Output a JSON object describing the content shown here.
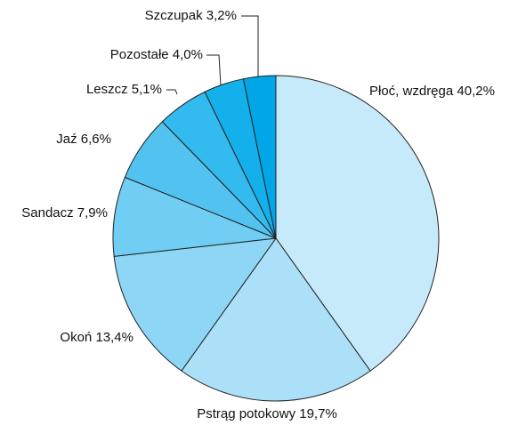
{
  "chart_data": {
    "type": "pie",
    "categories": [
      "Płoć, wzdręga",
      "Pstrąg potokowy",
      "Okoń",
      "Sandacz",
      "Jaź",
      "Leszcz",
      "Pozostałe",
      "Szczupak"
    ],
    "values": [
      40.2,
      19.7,
      13.4,
      7.9,
      6.6,
      5.1,
      4.0,
      3.2
    ],
    "value_labels": [
      "40,2%",
      "19,7%",
      "13,4%",
      "7,9%",
      "6,6%",
      "5,1%",
      "4,0%",
      "3,2%"
    ],
    "colors": [
      "#c7eafa",
      "#abe0f8",
      "#8dd6f5",
      "#70cdf3",
      "#52c3f0",
      "#33baee",
      "#14b0eb",
      "#00a6e6"
    ]
  }
}
